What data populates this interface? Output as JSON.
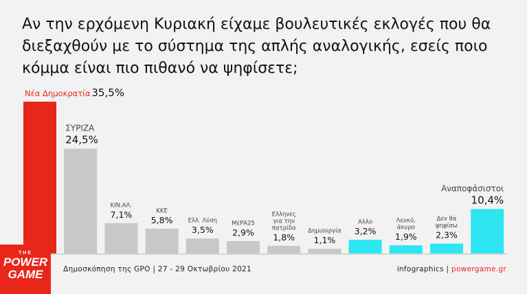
{
  "title": "Αν την ερχόμενη Κυριακή είχαμε βουλευτικές εκλογές που θα διεξαχθούν με το σύστημα της απλής αναλογικής, εσείς ποιο κόμμα είναι πιο πιθανό να ψηφίσετε;",
  "colors": {
    "red": "#e8261a",
    "gray": "#c8c8c8",
    "cyan": "#2ee6f2",
    "accent_text": "#e8261a"
  },
  "chart_data": {
    "type": "bar",
    "title": "Αν την ερχόμενη Κυριακή είχαμε βουλευτικές εκλογές που θα διεξαχθούν με το σύστημα της απλής αναλογικής, εσείς ποιο κόμμα είναι πιο πιθανό να ψηφίσετε;",
    "categories": [
      "Νέα Δημοκρατία",
      "ΣΥΡΙΖΑ",
      "ΚΙΝ.ΑΛ.",
      "ΚΚΕ",
      "Ελλ. Λύση",
      "ΜέΡΑ25",
      "Ελληνες για την πατρίδα",
      "Δημιουργία",
      "Αλλο",
      "Λευκό, άκυρο",
      "Δεν θα ψηφίσω",
      "Αναποφάσιστοι"
    ],
    "label_lines": [
      [
        "Νέα Δημοκρατία"
      ],
      [
        "ΣΥΡΙΖΑ"
      ],
      [
        "ΚΙΝ.ΑΛ."
      ],
      [
        "ΚΚΕ"
      ],
      [
        "Ελλ. Λύση"
      ],
      [
        "ΜέΡΑ25"
      ],
      [
        "Ελληνες",
        "για την",
        "πατρίδα"
      ],
      [
        "Δημιουργία"
      ],
      [
        "Αλλο"
      ],
      [
        "Λευκό,",
        "άκυρο"
      ],
      [
        "Δεν θα",
        "ψηφίσω"
      ],
      [
        "Αναποφάσιστοι"
      ]
    ],
    "values": [
      35.5,
      24.5,
      7.1,
      5.8,
      3.5,
      2.9,
      1.8,
      1.1,
      3.2,
      1.9,
      2.3,
      10.4
    ],
    "value_labels": [
      "35,5%",
      "24,5%",
      "7,1%",
      "5,8%",
      "3,5%",
      "2,9%",
      "1,8%",
      "1,1%",
      "3,2%",
      "1,9%",
      "2,3%",
      "10,4%"
    ],
    "colors": [
      "red",
      "gray",
      "gray",
      "gray",
      "gray",
      "gray",
      "gray",
      "gray",
      "cyan",
      "cyan",
      "cyan",
      "cyan"
    ],
    "ylim": [
      0,
      35.5
    ],
    "grid": false,
    "legend": "none"
  },
  "footer": {
    "logo_top": "THE",
    "logo_line1": "POWER",
    "logo_line2": "GAME",
    "source": "Δημοσκόπηση της GPO | 27 - 29 Οκτωβρίου 2021",
    "credit_prefix": "infographics",
    "credit_sep": "|",
    "credit_site": "powergame.gr"
  }
}
